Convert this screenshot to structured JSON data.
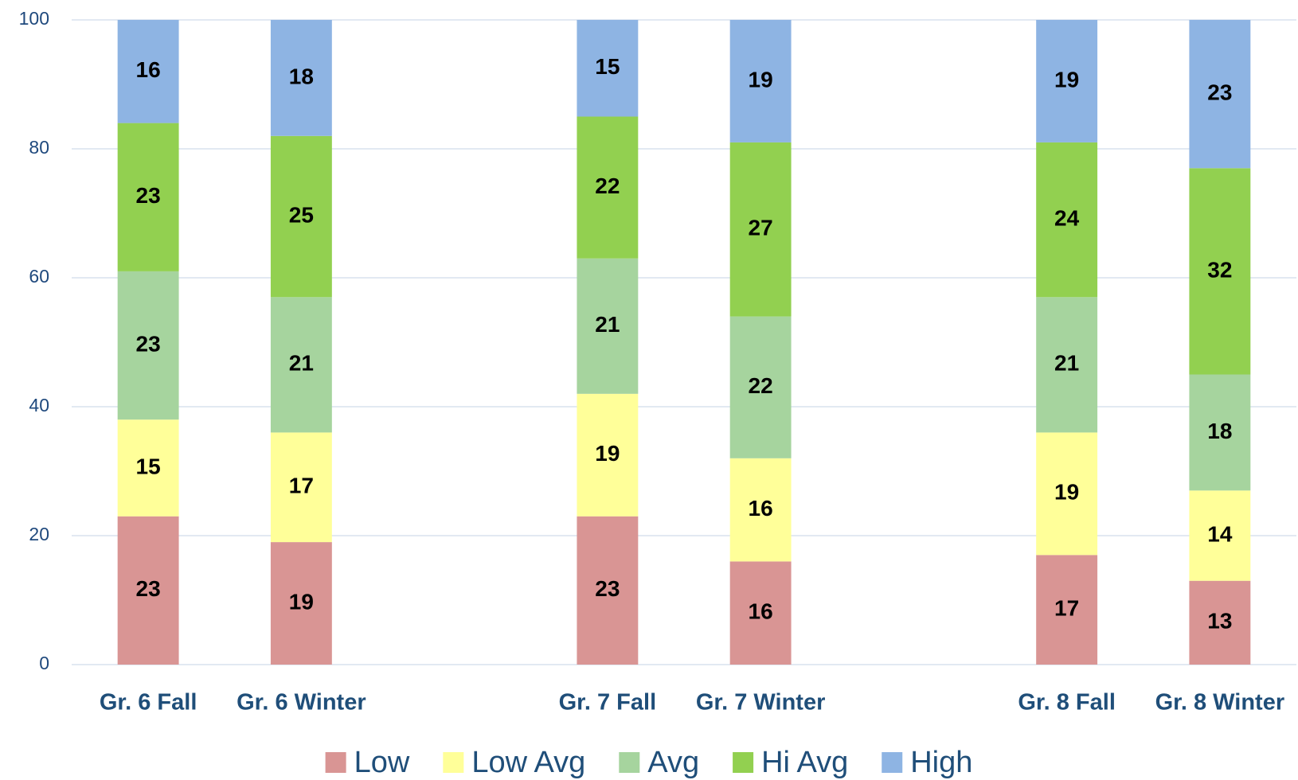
{
  "chart_data": {
    "type": "stacked_bar",
    "categories": [
      "Gr. 6 Fall",
      "Gr. 6 Winter",
      null,
      "Gr. 7 Fall",
      "Gr. 7 Winter",
      null,
      "Gr. 8 Fall",
      "Gr. 8 Winter"
    ],
    "series": [
      {
        "name": "Low",
        "color": "#d99594",
        "values": [
          23,
          19,
          null,
          23,
          16,
          null,
          17,
          13
        ]
      },
      {
        "name": "Low Avg",
        "color": "#ffff99",
        "values": [
          15,
          17,
          null,
          19,
          16,
          null,
          19,
          14
        ]
      },
      {
        "name": "Avg",
        "color": "#a6d49e",
        "values": [
          23,
          21,
          null,
          21,
          22,
          null,
          21,
          18
        ]
      },
      {
        "name": "Hi Avg",
        "color": "#92d050",
        "values": [
          23,
          25,
          null,
          22,
          27,
          null,
          24,
          32
        ]
      },
      {
        "name": "High",
        "color": "#8eb4e3",
        "values": [
          16,
          18,
          null,
          15,
          19,
          null,
          19,
          23
        ]
      }
    ],
    "ylim": [
      0,
      100
    ],
    "yticks": [
      0,
      20,
      40,
      60,
      80,
      100
    ],
    "grid": true,
    "legend": "bottom"
  }
}
